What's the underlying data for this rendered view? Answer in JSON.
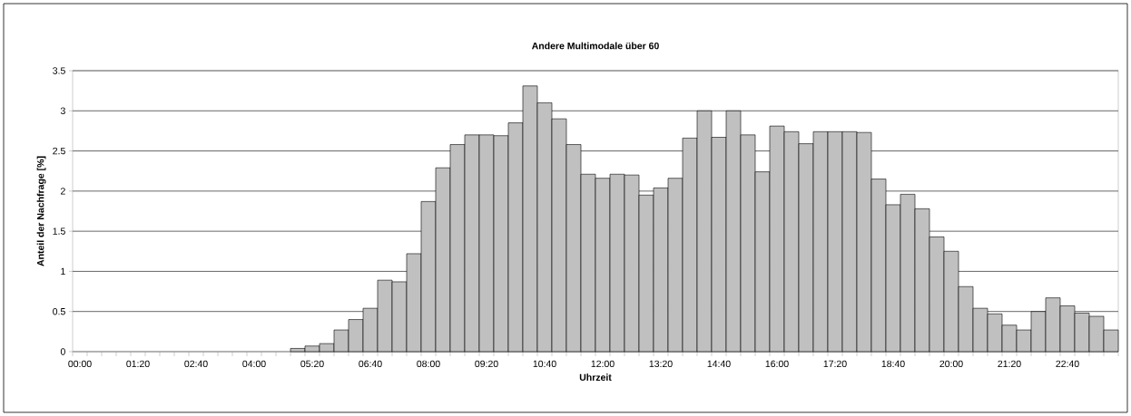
{
  "chart_data": {
    "type": "bar",
    "title": "Andere Multimodale über 60",
    "xlabel": "Uhrzeit",
    "ylabel": "Anteil der Nachfrage [%]",
    "categories": [
      "00:00",
      null,
      null,
      null,
      "01:20",
      null,
      null,
      null,
      "02:40",
      null,
      null,
      null,
      "04:00",
      null,
      null,
      null,
      "05:20",
      null,
      null,
      null,
      "06:40",
      null,
      null,
      null,
      "08:00",
      null,
      null,
      null,
      "09:20",
      null,
      null,
      null,
      "10:40",
      null,
      null,
      null,
      "12:00",
      null,
      null,
      null,
      "13:20",
      null,
      null,
      null,
      "14:40",
      null,
      null,
      null,
      "16:00",
      null,
      null,
      null,
      "17:20",
      null,
      null,
      null,
      "18:40",
      null,
      null,
      null,
      "20:00",
      null,
      null,
      null,
      "21:20",
      null,
      null,
      null,
      "22:40",
      null,
      null,
      null
    ],
    "values": [
      0,
      0,
      0,
      0,
      0,
      0,
      0,
      0,
      0,
      0,
      0,
      0,
      0,
      0,
      0,
      0.04,
      0.07,
      0.1,
      0.27,
      0.4,
      0.54,
      0.89,
      0.87,
      1.22,
      1.87,
      2.29,
      2.58,
      2.7,
      2.7,
      2.69,
      2.85,
      3.31,
      3.1,
      2.9,
      2.58,
      2.21,
      2.16,
      2.21,
      2.2,
      1.95,
      2.04,
      2.16,
      2.66,
      3.0,
      2.67,
      3.0,
      2.7,
      2.24,
      2.81,
      2.74,
      2.59,
      2.74,
      2.74,
      2.74,
      2.73,
      2.15,
      1.83,
      1.96,
      1.78,
      1.43,
      1.25,
      0.81,
      0.54,
      0.47,
      0.33,
      0.27,
      0.5,
      0.67,
      0.57,
      0.48,
      0.44,
      0.27
    ],
    "color": "#c0c0c0",
    "ylim": [
      0,
      3.5
    ],
    "yticks": [
      0,
      0.5,
      1,
      1.5,
      2,
      2.5,
      3,
      3.5
    ],
    "grid": "y"
  }
}
